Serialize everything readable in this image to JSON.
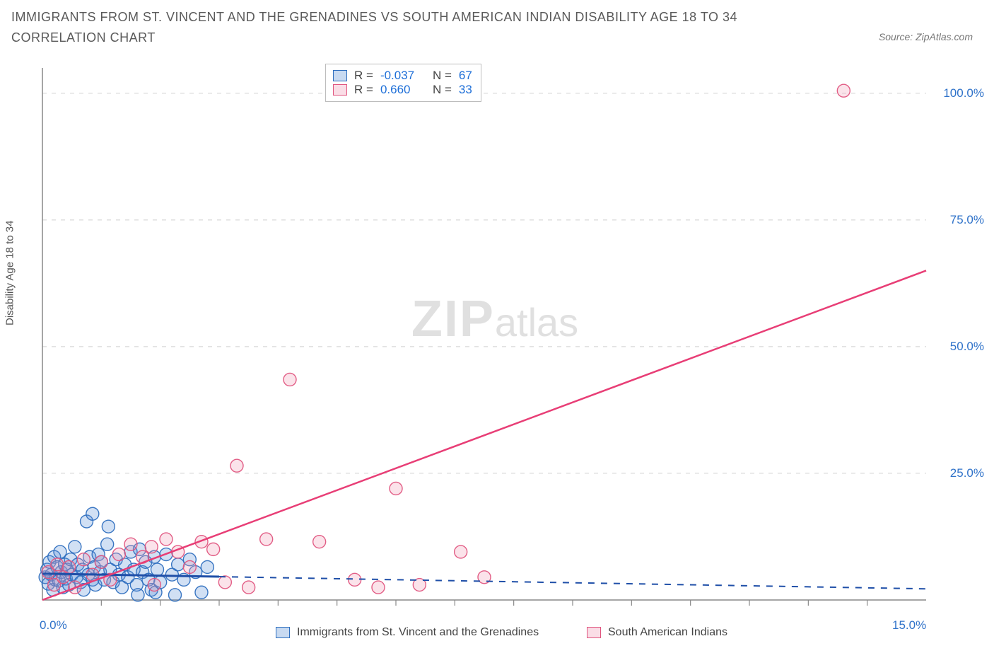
{
  "title": "IMMIGRANTS FROM ST. VINCENT AND THE GRENADINES VS SOUTH AMERICAN INDIAN DISABILITY AGE 18 TO 34 CORRELATION CHART",
  "source": "Source: ZipAtlas.com",
  "y_axis_label": "Disability Age 18 to 34",
  "watermark_zip": "ZIP",
  "watermark_atlas": "atlas",
  "chart": {
    "type": "scatter",
    "xlim": [
      0,
      15
    ],
    "ylim": [
      0,
      105
    ],
    "x_ticks_minor_step": 1,
    "y_grid": [
      0,
      25,
      50,
      75,
      100
    ],
    "y_tick_labels": [
      "0.0%",
      "25.0%",
      "50.0%",
      "75.0%",
      "100.0%"
    ],
    "x_tick_labels": [
      "0.0%",
      "15.0%"
    ],
    "background_color": "#ffffff",
    "grid_color": "#d9d9d9",
    "axis_color": "#888888",
    "marker_radius": 9,
    "marker_fill_alpha": 0.28,
    "marker_stroke_alpha": 0.95,
    "series": [
      {
        "id": "blue",
        "label": "Immigrants from St. Vincent and the Grenadines",
        "color": "#5a8fd6",
        "stroke": "#2f6fbf",
        "regression_color": "#1f4fa8",
        "regression_dashed": true,
        "r": "-0.037",
        "n": "67",
        "fit": {
          "x1": 0,
          "y1": 5.2,
          "x2": 15,
          "y2": 2.2,
          "solid_until_x": 3.0
        },
        "points": [
          [
            0.05,
            4.5
          ],
          [
            0.08,
            6.0
          ],
          [
            0.1,
            3.2
          ],
          [
            0.12,
            7.5
          ],
          [
            0.15,
            5.0
          ],
          [
            0.18,
            2.0
          ],
          [
            0.2,
            8.5
          ],
          [
            0.22,
            4.0
          ],
          [
            0.25,
            6.5
          ],
          [
            0.28,
            3.8
          ],
          [
            0.3,
            9.5
          ],
          [
            0.32,
            5.5
          ],
          [
            0.35,
            2.5
          ],
          [
            0.38,
            7.0
          ],
          [
            0.4,
            4.2
          ],
          [
            0.42,
            6.0
          ],
          [
            0.45,
            3.0
          ],
          [
            0.48,
            8.0
          ],
          [
            0.5,
            5.0
          ],
          [
            0.55,
            10.5
          ],
          [
            0.58,
            4.5
          ],
          [
            0.6,
            7.0
          ],
          [
            0.65,
            3.5
          ],
          [
            0.68,
            6.0
          ],
          [
            0.7,
            2.0
          ],
          [
            0.75,
            15.5
          ],
          [
            0.78,
            5.0
          ],
          [
            0.8,
            8.5
          ],
          [
            0.85,
            4.0
          ],
          [
            0.85,
            17.0
          ],
          [
            0.88,
            6.5
          ],
          [
            0.9,
            3.0
          ],
          [
            0.95,
            9.0
          ],
          [
            0.98,
            5.5
          ],
          [
            1.0,
            7.5
          ],
          [
            1.05,
            4.0
          ],
          [
            1.1,
            11.0
          ],
          [
            1.12,
            14.5
          ],
          [
            1.15,
            6.0
          ],
          [
            1.2,
            3.5
          ],
          [
            1.25,
            8.0
          ],
          [
            1.3,
            5.0
          ],
          [
            1.35,
            2.5
          ],
          [
            1.4,
            7.0
          ],
          [
            1.45,
            4.5
          ],
          [
            1.5,
            9.5
          ],
          [
            1.55,
            6.0
          ],
          [
            1.6,
            3.0
          ],
          [
            1.62,
            1.0
          ],
          [
            1.65,
            10.0
          ],
          [
            1.7,
            5.5
          ],
          [
            1.75,
            7.5
          ],
          [
            1.8,
            4.0
          ],
          [
            1.85,
            2.0
          ],
          [
            1.9,
            8.5
          ],
          [
            1.92,
            1.5
          ],
          [
            1.95,
            6.0
          ],
          [
            2.0,
            3.5
          ],
          [
            2.1,
            9.0
          ],
          [
            2.2,
            5.0
          ],
          [
            2.25,
            1.0
          ],
          [
            2.3,
            7.0
          ],
          [
            2.4,
            4.0
          ],
          [
            2.5,
            8.0
          ],
          [
            2.6,
            5.5
          ],
          [
            2.7,
            1.5
          ],
          [
            2.8,
            6.5
          ]
        ]
      },
      {
        "id": "pink",
        "label": "South American Indians",
        "color": "#f19ab4",
        "stroke": "#e0557f",
        "regression_color": "#e83e76",
        "regression_dashed": false,
        "r": "0.660",
        "n": "33",
        "fit": {
          "x1": 0,
          "y1": 0,
          "x2": 15,
          "y2": 65
        },
        "points": [
          [
            0.1,
            5.5
          ],
          [
            0.2,
            3.0
          ],
          [
            0.25,
            7.0
          ],
          [
            0.35,
            4.5
          ],
          [
            0.45,
            6.5
          ],
          [
            0.55,
            2.5
          ],
          [
            0.7,
            8.0
          ],
          [
            0.85,
            5.0
          ],
          [
            1.0,
            7.5
          ],
          [
            1.15,
            4.0
          ],
          [
            1.3,
            9.0
          ],
          [
            1.5,
            11.0
          ],
          [
            1.7,
            8.5
          ],
          [
            1.85,
            10.5
          ],
          [
            1.9,
            3.0
          ],
          [
            2.1,
            12.0
          ],
          [
            2.3,
            9.5
          ],
          [
            2.5,
            6.5
          ],
          [
            2.7,
            11.5
          ],
          [
            2.9,
            10.0
          ],
          [
            3.1,
            3.5
          ],
          [
            3.3,
            26.5
          ],
          [
            3.5,
            2.5
          ],
          [
            3.8,
            12.0
          ],
          [
            4.2,
            43.5
          ],
          [
            4.7,
            11.5
          ],
          [
            5.3,
            4.0
          ],
          [
            5.7,
            2.5
          ],
          [
            6.0,
            22.0
          ],
          [
            6.4,
            3.0
          ],
          [
            7.1,
            9.5
          ],
          [
            7.5,
            4.5
          ],
          [
            13.6,
            100.5
          ]
        ]
      }
    ]
  },
  "legend_top": {
    "r_label": "R =",
    "n_label": "N ="
  },
  "bottom_legend": [
    {
      "series": "blue"
    },
    {
      "series": "pink"
    }
  ]
}
